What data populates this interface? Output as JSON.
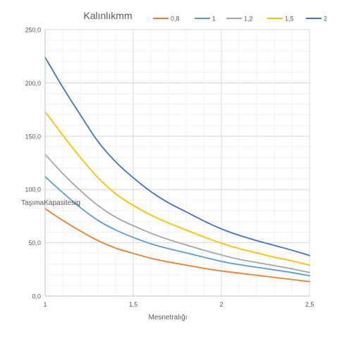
{
  "chart_data": {
    "type": "line",
    "title": "Kalınlıkmm",
    "xlabel": "Mesnetralığı",
    "ylabel": "TaşımaKapasitesig",
    "x_ticks": [
      "1",
      "1,5",
      "2",
      "2,5"
    ],
    "y_ticks": [
      "0,0",
      "50,0",
      "100,0",
      "150,0",
      "200,0",
      "250,0"
    ],
    "xlim": [
      1,
      2.5
    ],
    "ylim": [
      0,
      250
    ],
    "grid": true,
    "minor_grid": true,
    "legend_position": "top",
    "x": [
      1,
      1.1,
      1.2,
      1.3,
      1.4,
      1.5,
      1.6,
      1.7,
      1.8,
      1.9,
      2,
      2.1,
      2.2,
      2.3,
      2.4,
      2.5
    ],
    "series": [
      {
        "name": "0,8",
        "color": "#ED7D31",
        "values": [
          82,
          71,
          61,
          52,
          45,
          40,
          35.5,
          32,
          29,
          26,
          23.5,
          21.5,
          19.5,
          17.5,
          15.5,
          13.5
        ]
      },
      {
        "name": "1",
        "color": "#5B9BD5",
        "values": [
          112,
          97,
          83,
          71,
          62,
          55,
          49,
          44.5,
          40.5,
          36.5,
          32.5,
          29.5,
          27,
          24.5,
          22,
          19
        ]
      },
      {
        "name": "1,2",
        "color": "#A5A5A5",
        "values": [
          133,
          115,
          99,
          85,
          74,
          66,
          59,
          53,
          48,
          43,
          38.5,
          34.5,
          31.5,
          28.5,
          25.5,
          22
        ]
      },
      {
        "name": "1,5",
        "color": "#FFC000",
        "values": [
          173,
          151,
          130,
          111,
          96,
          85,
          76,
          68.5,
          62,
          55.5,
          49.5,
          44.5,
          40.5,
          36.5,
          33,
          29
        ]
      },
      {
        "name": "2",
        "color": "#4472C4",
        "values": [
          224,
          196,
          170,
          145,
          126,
          111,
          98,
          87.5,
          79,
          70.5,
          63,
          57,
          52,
          47.5,
          43,
          38
        ]
      }
    ]
  }
}
